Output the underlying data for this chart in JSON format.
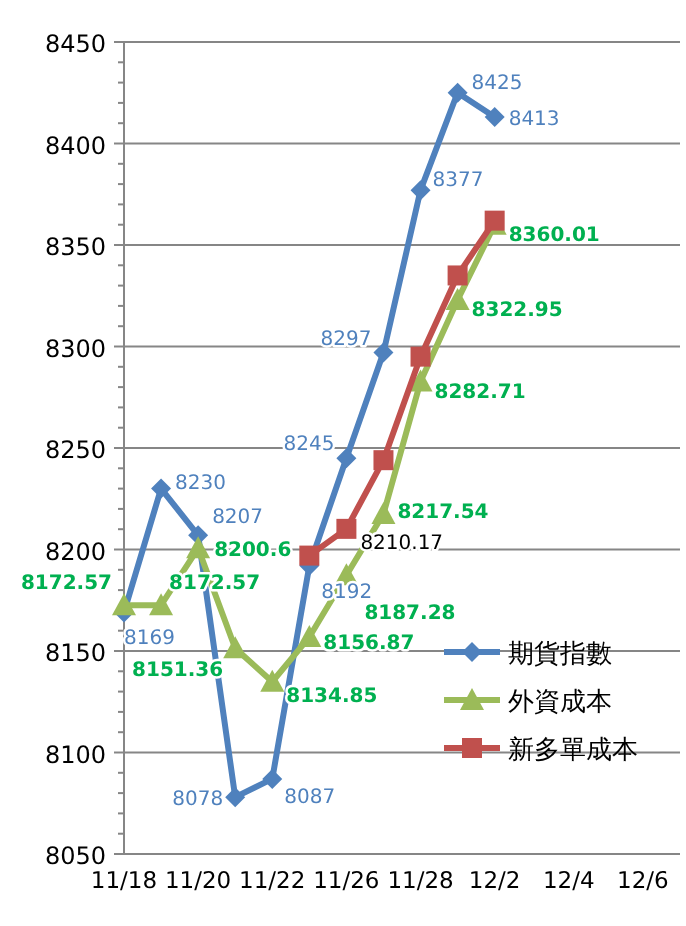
{
  "chart_data": {
    "type": "line",
    "categories": [
      "11/18",
      null,
      "11/20",
      null,
      "11/22",
      null,
      "11/26",
      null,
      "11/28",
      null,
      "12/2",
      null,
      "12/4",
      null,
      "12/6"
    ],
    "series": [
      {
        "name": "期貨指數",
        "color": "#4f81bd",
        "marker": "diamond",
        "values": [
          8169,
          8230,
          8207,
          8078,
          8087,
          8192,
          8245,
          8297,
          8377,
          8425,
          8413,
          null,
          null,
          null,
          null
        ],
        "value_labels": [
          "8169",
          "8230",
          "8207",
          "8078",
          "8087",
          "8192",
          "8245",
          "8297",
          "8377",
          "8425",
          "8413",
          null,
          null,
          null,
          null
        ]
      },
      {
        "name": "外資成本",
        "color": "#9bbb59",
        "marker": "triangle",
        "values": [
          8172.57,
          8172.57,
          8200.6,
          8151.36,
          8134.85,
          8156.87,
          8187.28,
          8217.54,
          8282.71,
          8322.95,
          8360.01,
          null,
          null,
          null,
          null
        ],
        "value_labels": [
          "8172.57",
          "8172.57",
          "8200.6",
          "8151.36",
          "8134.85",
          "8156.87",
          "8187.28",
          "8217.54",
          "8282.71",
          "8322.95",
          "8360.01",
          null,
          null,
          null,
          null
        ]
      },
      {
        "name": "新多單成本",
        "color": "#c0504d",
        "marker": "square",
        "values": [
          null,
          null,
          null,
          null,
          null,
          8197,
          8210.17,
          8244,
          8295,
          8335,
          8362,
          null,
          null,
          null,
          null
        ],
        "value_labels": [
          null,
          null,
          null,
          null,
          null,
          null,
          "8210.17",
          null,
          null,
          null,
          null,
          null,
          null,
          null,
          null
        ]
      }
    ],
    "ylim": [
      8050,
      8450
    ],
    "yticks": [
      8050,
      8100,
      8150,
      8200,
      8250,
      8300,
      8350,
      8400,
      8450
    ],
    "grid": "y",
    "legend": "right"
  }
}
